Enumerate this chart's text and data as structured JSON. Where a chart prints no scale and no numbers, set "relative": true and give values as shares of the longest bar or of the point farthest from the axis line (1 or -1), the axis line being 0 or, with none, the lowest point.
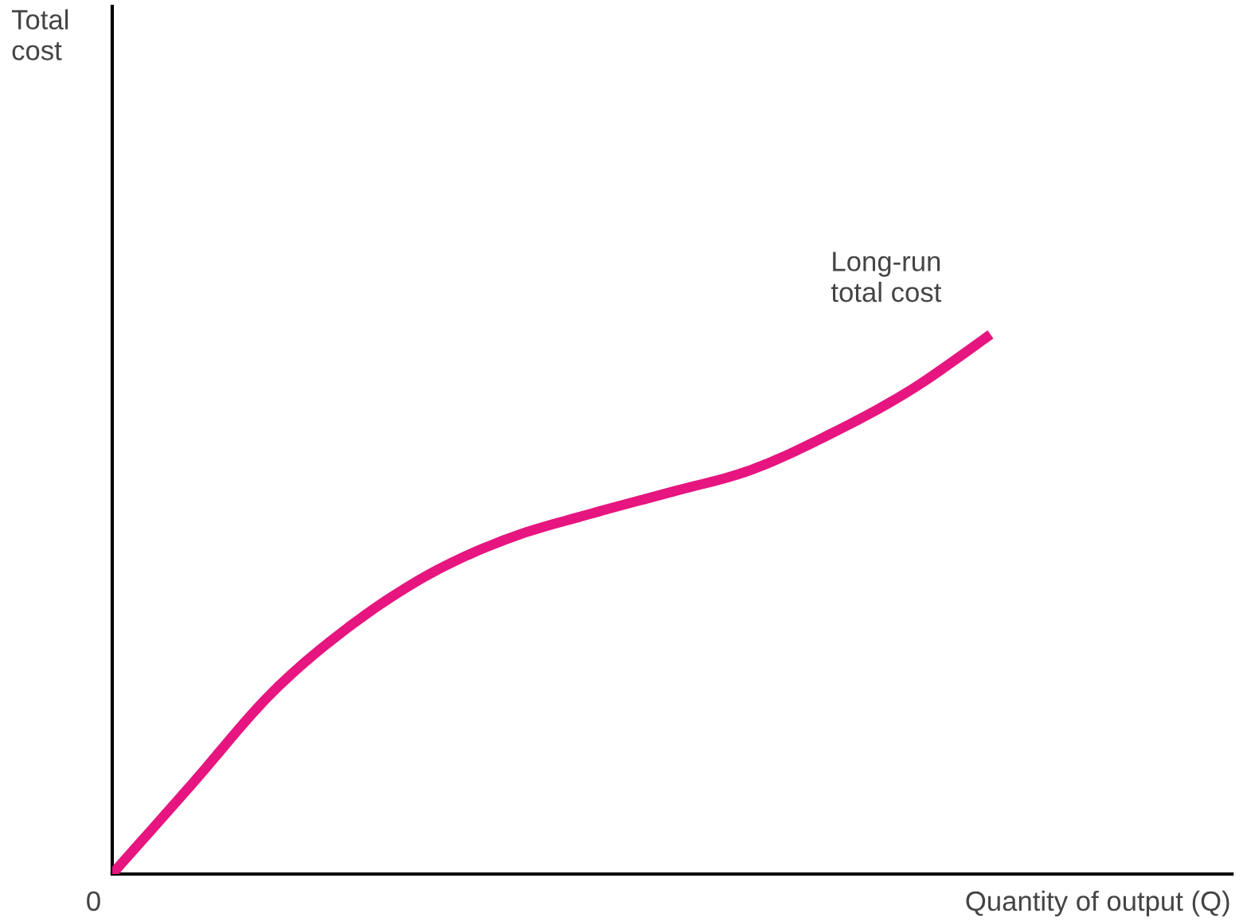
{
  "chart_data": {
    "type": "line",
    "relative": true,
    "xlabel": "Quantity of output (Q)",
    "categories": [
      null,
      null,
      null,
      null,
      null,
      null,
      null,
      null,
      null,
      null,
      null,
      null
    ],
    "series": [
      {
        "name": "Long-run\ntotal cost",
        "color": "#e6157f",
        "values": [
          0,
          0.167,
          0.336,
          0.462,
          0.558,
          0.624,
          0.668,
          0.708,
          0.749,
          0.816,
          0.897,
          1
        ]
      }
    ],
    "annotations": [
      "Total\ncost",
      "0"
    ]
  }
}
